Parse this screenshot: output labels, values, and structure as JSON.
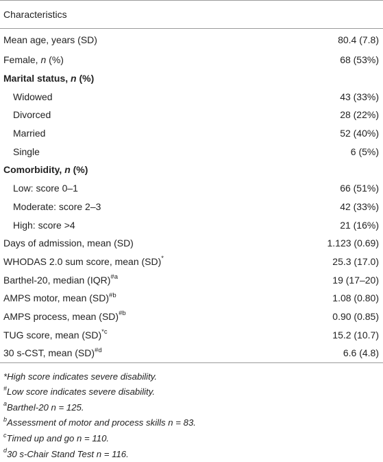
{
  "table": {
    "header": "Characteristics",
    "rows": [
      {
        "pre": "Mean age, years (SD)",
        "value": "80.4 (7.8)"
      },
      {
        "pre": "Female, ",
        "n": "n",
        "post": " (%)",
        "value": "68 (53%)"
      },
      {
        "pre": "Marital status, ",
        "n": "n",
        "post": " (%)",
        "value": ""
      },
      {
        "pre": "Widowed",
        "value": "43 (33%)"
      },
      {
        "pre": "Divorced",
        "value": "28 (22%)"
      },
      {
        "pre": "Married",
        "value": "52 (40%)"
      },
      {
        "pre": "Single",
        "value": "6 (5%)"
      },
      {
        "pre": "Comorbidity, ",
        "n": "n",
        "post": " (%)",
        "value": ""
      },
      {
        "pre": "Low: score 0–1",
        "value": "66 (51%)"
      },
      {
        "pre": "Moderate: score 2–3",
        "value": "42 (33%)"
      },
      {
        "pre": "High: score >4",
        "value": "21 (16%)"
      },
      {
        "pre": "Days of admission, mean (SD)",
        "value": "1.123 (0.69)"
      },
      {
        "pre": "WHODAS 2.0 sum score, mean (SD)",
        "sup": "*",
        "value": "25.3 (17.0)"
      },
      {
        "pre": "Barthel-20, median (IQR)",
        "sup": "#a",
        "value": "19 (17–20)"
      },
      {
        "pre": "AMPS motor, mean (SD)",
        "sup": "#b",
        "value": "1.08 (0.80)"
      },
      {
        "pre": "AMPS process, mean (SD)",
        "sup": "#b",
        "value": "0.90 (0.85)"
      },
      {
        "pre": "TUG score, mean (SD)",
        "sup": "*c",
        "value": "15.2 (10.7)"
      },
      {
        "pre": "30 s-CST, mean (SD)",
        "sup": "#d",
        "value": "6.6 (4.8)"
      }
    ]
  },
  "footnotes": [
    {
      "sup": "",
      "text": "*High score indicates severe disability."
    },
    {
      "sup": "#",
      "text": "Low score indicates severe disability."
    },
    {
      "sup": "a",
      "text": "Barthel-20 n = 125."
    },
    {
      "sup": "b",
      "text": "Assessment of motor and process skills n = 83."
    },
    {
      "sup": "c",
      "text": "Timed up and go n = 110."
    },
    {
      "sup": "d",
      "text": "30 s-Chair Stand Test n = 116."
    }
  ]
}
